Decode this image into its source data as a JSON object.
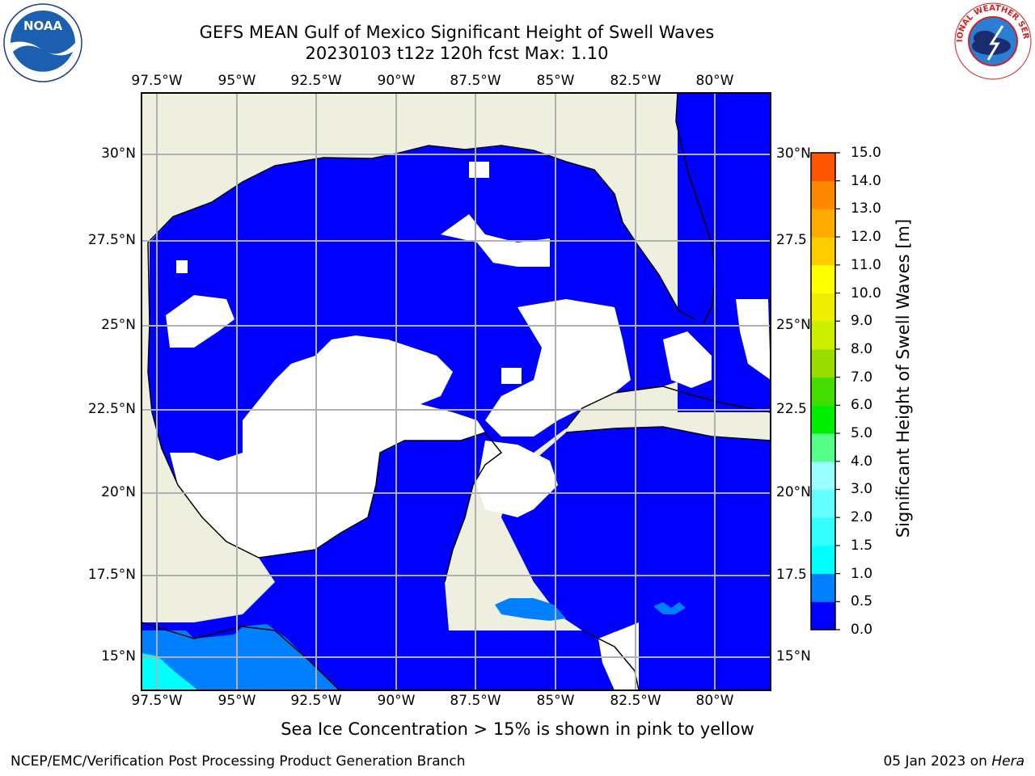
{
  "title": {
    "line1": "GEFS MEAN Gulf of Mexico Significant Height of Swell Waves",
    "line2": "20230103 t12z 120h fcst   Max: 1.10"
  },
  "axes": {
    "lon_labels": [
      "97.5°W",
      "95°W",
      "92.5°W",
      "90°W",
      "87.5°W",
      "85°W",
      "82.5°W",
      "80°W"
    ],
    "lat_labels_left": [
      "30°N",
      "27.5°N",
      "25°N",
      "22.5°N",
      "20°N",
      "17.5°N",
      "15°N"
    ],
    "lat_labels_right": [
      "30°N",
      "27.5",
      "25°N",
      "22.5",
      "20°N",
      "17.5",
      "15°N"
    ]
  },
  "colorbar": {
    "label": "Significant Height of Swell Waves [m]",
    "ticks": [
      "15.0",
      "14.0",
      "13.0",
      "12.0",
      "11.0",
      "10.0",
      "9.0",
      "8.0",
      "7.0",
      "6.0",
      "5.0",
      "4.0",
      "3.0",
      "2.0",
      "1.5",
      "1.0",
      "0.5",
      "0.0"
    ],
    "colors": [
      "#0000ff",
      "#0080ff",
      "#00ffff",
      "#33ffff",
      "#66ffff",
      "#99ffff",
      "#55ff88",
      "#00ee00",
      "#44dd00",
      "#99dd00",
      "#ccee00",
      "#eeee00",
      "#ffff00",
      "#ffcc00",
      "#ffaa00",
      "#ff8800",
      "#ff5500",
      "#ff2200",
      "#ff0000"
    ]
  },
  "map": {
    "land_color": "#efefdf",
    "ocean_color": "#0000ff",
    "low_swell_color": "#ffffff",
    "swell_05_color": "#0080ff",
    "swell_1_color": "#00ffff",
    "grid_color": "#b0b0b0"
  },
  "note": "Sea Ice Concentration > 15% is shown in pink to yellow",
  "footer": {
    "left": "NCEP/EMC/Verification Post Processing Product Generation Branch",
    "right_prefix": "05 Jan 2023 on ",
    "right_host": "Hera"
  },
  "logos": {
    "noaa": "NOAA",
    "nws": "NATIONAL WEATHER SERVICE"
  }
}
